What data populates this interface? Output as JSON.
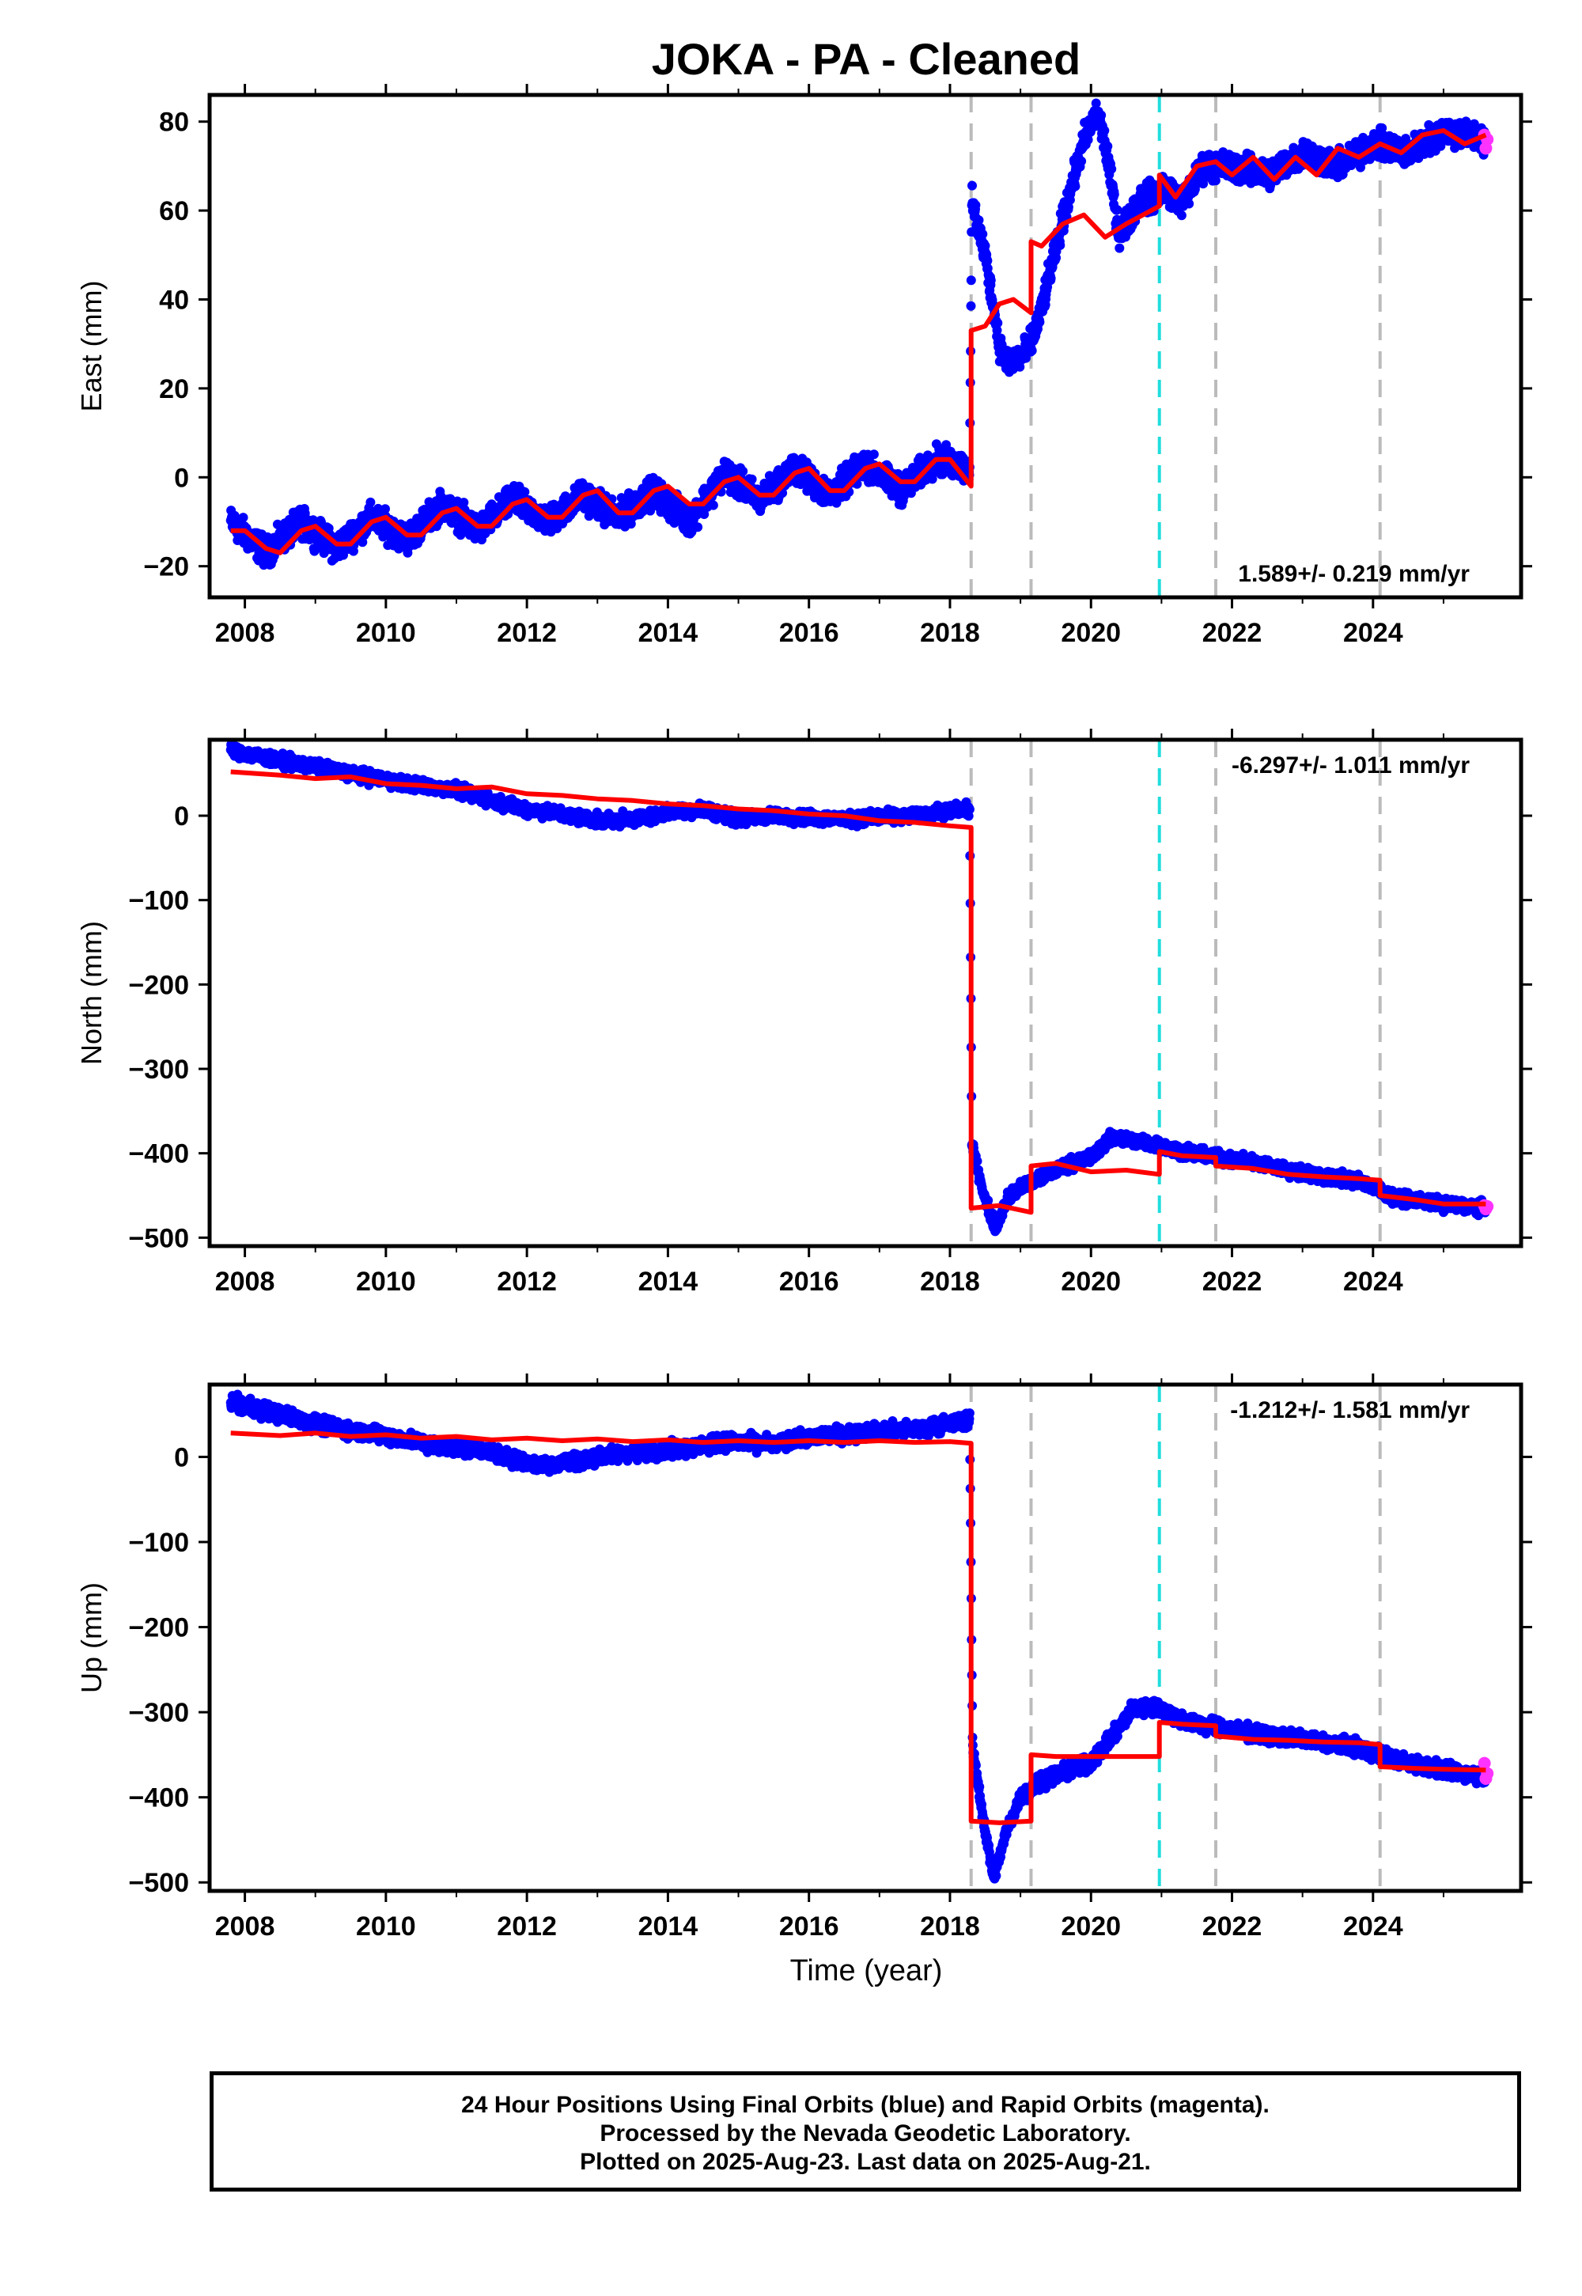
{
  "title": "JOKA  - PA - Cleaned",
  "xlabel": "Time (year)",
  "footer": {
    "line1": "24 Hour Positions Using Final Orbits (blue) and Rapid Orbits (magenta).",
    "line2": "Processed by the Nevada Geodetic Laboratory.",
    "line3": "Plotted on 2025-Aug-23. Last data on 2025-Aug-21."
  },
  "colors": {
    "data": "#0000ff",
    "rapid": "#ff33ff",
    "model": "#ff0000",
    "event": "#bbbbbb",
    "event_special": "#22dddd"
  },
  "chart_data": [
    {
      "type": "scatter",
      "name": "east",
      "ylabel": "East (mm)",
      "rate": "1.589+/- 0.219 mm/yr",
      "rate_position": "bottom-right",
      "xlim": [
        2007.5,
        2026.1
      ],
      "ylim": [
        -27,
        86
      ],
      "yticks": [
        -20,
        0,
        20,
        40,
        60,
        80
      ],
      "xticks": [
        2008,
        2010,
        2012,
        2014,
        2016,
        2018,
        2020,
        2022,
        2024
      ],
      "events": [
        2018.3,
        2019.15,
        2020.97,
        2021.77,
        2024.1
      ],
      "special_event": 2020.97,
      "series": [
        {
          "name": "model_segments",
          "segments": [
            {
              "x": [
                2007.8,
                2008.0,
                2008.3,
                2008.5,
                2008.8,
                2009.0,
                2009.3,
                2009.5,
                2009.8,
                2010.0,
                2010.3,
                2010.5,
                2010.8,
                2011.0,
                2011.3,
                2011.5,
                2011.8,
                2012.0,
                2012.3,
                2012.5,
                2012.8,
                2013.0,
                2013.3,
                2013.5,
                2013.8,
                2014.0,
                2014.3,
                2014.5,
                2014.8,
                2015.0,
                2015.3,
                2015.5,
                2015.8,
                2016.0,
                2016.3,
                2016.5,
                2016.8,
                2017.0,
                2017.3,
                2017.5,
                2017.8,
                2018.0,
                2018.3
              ],
              "y": [
                -12,
                -12,
                -16,
                -17,
                -12,
                -11,
                -15,
                -15,
                -10,
                -9,
                -13,
                -13,
                -8,
                -7,
                -11,
                -11,
                -6,
                -5,
                -9,
                -9,
                -4,
                -3,
                -8,
                -8,
                -3,
                -2,
                -6,
                -6,
                -1,
                0,
                -4,
                -4,
                1,
                2,
                -3,
                -3,
                2,
                3,
                -1,
                -1,
                4,
                4,
                -2
              ]
            },
            {
              "x": [
                2018.3,
                2018.5,
                2018.7,
                2018.9,
                2019.15
              ],
              "y": [
                33,
                34,
                39,
                40,
                37
              ]
            },
            {
              "x": [
                2019.15,
                2019.3,
                2019.6,
                2019.9,
                2020.2,
                2020.5,
                2020.97
              ],
              "y": [
                53,
                52,
                57,
                59,
                54,
                57,
                61
              ]
            },
            {
              "x": [
                2020.97,
                2021.2,
                2021.5,
                2021.77
              ],
              "y": [
                68,
                63,
                70,
                71
              ]
            },
            {
              "x": [
                2021.77,
                2022.0,
                2022.3,
                2022.6,
                2022.9,
                2023.2,
                2023.5,
                2023.8,
                2024.1
              ],
              "y": [
                71,
                68,
                72,
                67,
                72,
                68,
                74,
                72,
                75
              ]
            },
            {
              "x": [
                2024.1,
                2024.4,
                2024.7,
                2025.0,
                2025.3,
                2025.6
              ],
              "y": [
                75,
                73,
                77,
                78,
                75,
                77
              ]
            }
          ]
        },
        {
          "name": "data",
          "anchors": {
            "x": [
              2007.8,
              2008.3,
              2008.8,
              2009.3,
              2009.8,
              2010.3,
              2010.8,
              2011.3,
              2011.8,
              2012.3,
              2012.8,
              2013.3,
              2013.8,
              2014.3,
              2014.8,
              2015.3,
              2015.8,
              2016.3,
              2016.8,
              2017.3,
              2017.8,
              2018.28,
              2018.31,
              2018.5,
              2018.7,
              2018.8,
              2019.0,
              2019.15,
              2019.3,
              2019.6,
              2019.9,
              2020.1,
              2020.2,
              2020.4,
              2020.5,
              2020.7,
              2020.96,
              2020.98,
              2021.3,
              2021.6,
              2022.0,
              2022.5,
              2023.0,
              2023.5,
              2024.0,
              2024.5,
              2025.0,
              2025.6
            ],
            "y": [
              -10,
              -17,
              -10,
              -16,
              -9,
              -14,
              -6,
              -12,
              -5,
              -10,
              -4,
              -9,
              -3,
              -10,
              1,
              -5,
              2,
              -4,
              3,
              -3,
              4,
              2,
              62,
              50,
              30,
              26,
              27,
              30,
              38,
              58,
              76,
              82,
              75,
              55,
              57,
              63,
              63,
              66,
              62,
              70,
              70,
              68,
              73,
              70,
              75,
              73,
              78,
              76
            ],
            "noise": 2.2
          }
        },
        {
          "name": "rapid",
          "x": [
            2025.58,
            2025.6,
            2025.62
          ],
          "y": [
            77,
            74,
            76
          ]
        }
      ]
    },
    {
      "type": "scatter",
      "name": "north",
      "ylabel": "North (mm)",
      "rate": "-6.297+/- 1.011 mm/yr",
      "rate_position": "top-right",
      "xlim": [
        2007.5,
        2026.1
      ],
      "ylim": [
        -510,
        90
      ],
      "yticks": [
        -500,
        -400,
        -300,
        -200,
        -100,
        0
      ],
      "xticks": [
        2008,
        2010,
        2012,
        2014,
        2016,
        2018,
        2020,
        2022,
        2024
      ],
      "events": [
        2018.3,
        2019.15,
        2020.97,
        2021.77,
        2024.1
      ],
      "special_event": 2020.97,
      "series": [
        {
          "name": "model_segments",
          "segments": [
            {
              "x": [
                2007.8,
                2008.5,
                2009.0,
                2009.5,
                2010.0,
                2010.5,
                2011.0,
                2011.5,
                2012.0,
                2012.5,
                2013.0,
                2013.5,
                2014.0,
                2014.5,
                2015.0,
                2015.5,
                2016.0,
                2016.5,
                2017.0,
                2017.5,
                2018.0,
                2018.3
              ],
              "y": [
                52,
                48,
                44,
                46,
                38,
                36,
                32,
                34,
                26,
                24,
                20,
                18,
                14,
                12,
                8,
                6,
                2,
                0,
                -6,
                -8,
                -12,
                -14
              ]
            },
            {
              "x": [
                2018.3,
                2018.7,
                2019.15
              ],
              "y": [
                -465,
                -462,
                -470
              ]
            },
            {
              "x": [
                2019.15,
                2019.5,
                2020.0,
                2020.5,
                2020.97
              ],
              "y": [
                -415,
                -412,
                -422,
                -420,
                -425
              ]
            },
            {
              "x": [
                2020.97,
                2021.3,
                2021.77
              ],
              "y": [
                -398,
                -403,
                -405
              ]
            },
            {
              "x": [
                2021.77,
                2022.3,
                2022.8,
                2023.3,
                2023.8,
                2024.1
              ],
              "y": [
                -415,
                -418,
                -425,
                -428,
                -430,
                -432
              ]
            },
            {
              "x": [
                2024.1,
                2024.6,
                2025.0,
                2025.6
              ],
              "y": [
                -450,
                -455,
                -460,
                -460
              ]
            }
          ]
        },
        {
          "name": "data",
          "anchors": {
            "x": [
              2007.8,
              2008.3,
              2009.0,
              2009.6,
              2010.3,
              2011.0,
              2011.5,
              2012.0,
              2012.5,
              2013.0,
              2013.5,
              2014.0,
              2014.5,
              2015.0,
              2015.5,
              2016.0,
              2016.5,
              2017.0,
              2017.5,
              2018.0,
              2018.28,
              2018.31,
              2018.5,
              2018.65,
              2018.8,
              2019.0,
              2019.3,
              2019.6,
              2020.0,
              2020.3,
              2020.6,
              2020.96,
              2021.3,
              2021.8,
              2022.3,
              2022.8,
              2023.3,
              2023.8,
              2024.3,
              2024.8,
              2025.3,
              2025.6
            ],
            "y": [
              78,
              68,
              58,
              48,
              38,
              30,
              18,
              8,
              2,
              -6,
              -4,
              4,
              8,
              -4,
              0,
              -2,
              -4,
              -2,
              0,
              6,
              8,
              -390,
              -455,
              -490,
              -455,
              -440,
              -430,
              -415,
              -405,
              -380,
              -385,
              -390,
              -398,
              -405,
              -410,
              -420,
              -428,
              -432,
              -452,
              -458,
              -463,
              -464
            ],
            "noise": 5
          }
        },
        {
          "name": "rapid",
          "x": [
            2025.58,
            2025.6,
            2025.62
          ],
          "y": [
            -462,
            -466,
            -463
          ]
        }
      ]
    },
    {
      "type": "scatter",
      "name": "up",
      "ylabel": "Up (mm)",
      "rate": "-1.212+/- 1.581 mm/yr",
      "rate_position": "top-right",
      "xlim": [
        2007.5,
        2026.1
      ],
      "ylim": [
        -510,
        85
      ],
      "yticks": [
        -500,
        -400,
        -300,
        -200,
        -100,
        0
      ],
      "xticks": [
        2008,
        2010,
        2012,
        2014,
        2016,
        2018,
        2020,
        2022,
        2024
      ],
      "events": [
        2018.3,
        2019.15,
        2020.97,
        2021.77,
        2024.1
      ],
      "special_event": 2020.97,
      "series": [
        {
          "name": "model_segments",
          "segments": [
            {
              "x": [
                2007.8,
                2008.5,
                2009.0,
                2009.5,
                2010.0,
                2010.5,
                2011.0,
                2011.5,
                2012.0,
                2012.5,
                2013.0,
                2013.5,
                2014.0,
                2014.5,
                2015.0,
                2015.5,
                2016.0,
                2016.5,
                2017.0,
                2017.5,
                2018.0,
                2018.3
              ],
              "y": [
                28,
                25,
                28,
                24,
                26,
                22,
                24,
                20,
                22,
                19,
                21,
                18,
                20,
                17,
                19,
                17,
                19,
                17,
                19,
                17,
                18,
                16
              ]
            },
            {
              "x": [
                2018.3,
                2018.7,
                2019.15
              ],
              "y": [
                -428,
                -430,
                -428
              ]
            },
            {
              "x": [
                2019.15,
                2019.5,
                2020.0,
                2020.5,
                2020.97
              ],
              "y": [
                -350,
                -352,
                -352,
                -352,
                -352
              ]
            },
            {
              "x": [
                2020.97,
                2021.3,
                2021.77
              ],
              "y": [
                -312,
                -314,
                -316
              ]
            },
            {
              "x": [
                2021.77,
                2022.3,
                2022.8,
                2023.3,
                2023.8,
                2024.1
              ],
              "y": [
                -328,
                -332,
                -333,
                -335,
                -336,
                -338
              ]
            },
            {
              "x": [
                2024.1,
                2024.6,
                2025.0,
                2025.6
              ],
              "y": [
                -364,
                -366,
                -367,
                -368
              ]
            }
          ]
        },
        {
          "name": "data",
          "anchors": {
            "x": [
              2007.8,
              2008.5,
              2009.2,
              2010.0,
              2010.6,
              2011.3,
              2011.9,
              2012.2,
              2012.8,
              2013.5,
              2014.2,
              2014.9,
              2015.5,
              2016.2,
              2016.9,
              2017.5,
              2018.2,
              2018.28,
              2018.32,
              2018.5,
              2018.62,
              2018.8,
              2019.0,
              2019.3,
              2019.6,
              2020.0,
              2020.3,
              2020.6,
              2020.96,
              2021.3,
              2021.8,
              2022.3,
              2022.8,
              2023.3,
              2023.8,
              2024.3,
              2024.8,
              2025.3,
              2025.6
            ],
            "y": [
              65,
              50,
              35,
              25,
              15,
              10,
              -5,
              -10,
              -3,
              5,
              10,
              18,
              15,
              25,
              30,
              32,
              42,
              45,
              -340,
              -440,
              -495,
              -440,
              -400,
              -380,
              -370,
              -360,
              -330,
              -295,
              -295,
              -310,
              -318,
              -325,
              -330,
              -335,
              -342,
              -355,
              -365,
              -372,
              -375
            ],
            "noise": 6
          }
        },
        {
          "name": "rapid",
          "x": [
            2025.58,
            2025.6,
            2025.62
          ],
          "y": [
            -360,
            -378,
            -372
          ]
        }
      ]
    }
  ]
}
